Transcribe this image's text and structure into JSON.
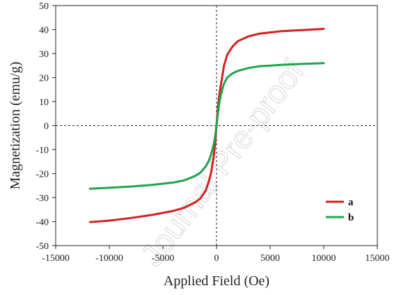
{
  "chart_data": {
    "type": "line",
    "title": "",
    "xlabel": "Applied Field (Oe)",
    "ylabel": "Magnetization (emu/g)",
    "xlim": [
      -15000,
      15000
    ],
    "ylim": [
      -50,
      50
    ],
    "xticks": [
      -15000,
      -10000,
      -5000,
      0,
      5000,
      10000,
      15000
    ],
    "yticks": [
      -50,
      -40,
      -30,
      -20,
      -10,
      0,
      10,
      20,
      30,
      40,
      50
    ],
    "xtick_labels": [
      "-15000",
      "-10000",
      "-5000",
      "0",
      "5000",
      "10000",
      "15000"
    ],
    "ytick_labels": [
      "-50",
      "-40",
      "-30",
      "-20",
      "-10",
      "0",
      "10",
      "20",
      "30",
      "40",
      "50"
    ],
    "grid": false,
    "zero_lines": "dashed",
    "legend_position": "lower-right",
    "series": [
      {
        "name": "a",
        "color": "#d42020",
        "x": [
          -11800,
          -10000,
          -8000,
          -6000,
          -4000,
          -3000,
          -2000,
          -1500,
          -1000,
          -700,
          -500,
          -300,
          -200,
          -100,
          0,
          100,
          200,
          300,
          500,
          700,
          1000,
          1500,
          2000,
          3000,
          4000,
          6000,
          8000,
          10000
        ],
        "y": [
          -40.2,
          -39.6,
          -38.5,
          -37.2,
          -35.5,
          -34.2,
          -32.0,
          -30.3,
          -27.0,
          -23.0,
          -19.5,
          -14.0,
          -10.5,
          -6.0,
          0.0,
          6.0,
          10.5,
          14.0,
          19.5,
          25.0,
          29.5,
          33.0,
          35.2,
          37.2,
          38.3,
          39.3,
          39.8,
          40.3
        ]
      },
      {
        "name": "b",
        "color": "#1fa44e",
        "x": [
          -11800,
          -10000,
          -8000,
          -6000,
          -4000,
          -3000,
          -2000,
          -1500,
          -1000,
          -700,
          -500,
          -300,
          -200,
          -100,
          0,
          100,
          200,
          300,
          500,
          700,
          1000,
          1500,
          2000,
          3000,
          4000,
          6000,
          8000,
          10000
        ],
        "y": [
          -26.3,
          -25.9,
          -25.4,
          -24.7,
          -23.7,
          -22.8,
          -21.0,
          -19.6,
          -17.0,
          -14.5,
          -12.0,
          -8.5,
          -6.5,
          -3.5,
          0.0,
          4.0,
          7.5,
          10.5,
          14.5,
          17.5,
          20.0,
          21.8,
          22.8,
          24.0,
          24.7,
          25.3,
          25.7,
          26.0
        ]
      }
    ]
  },
  "watermark_text": "Journal Pre-proof"
}
